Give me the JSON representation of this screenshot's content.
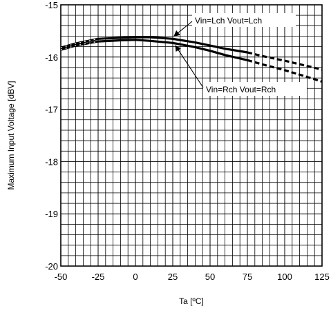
{
  "chart_data": {
    "type": "line",
    "xlabel": "Ta [ºC]",
    "ylabel": "Maximum Input Voltage [dBV]",
    "xlim": [
      -50,
      125
    ],
    "ylim": [
      -20,
      -15
    ],
    "xticks": [
      -50,
      -25,
      0,
      25,
      50,
      75,
      100,
      125
    ],
    "yticks": [
      -20,
      -19,
      -18,
      -17,
      -16,
      -15
    ],
    "grid": true,
    "series": [
      {
        "name": "Vin=Lch Vout=Lch",
        "solid_x": [
          -50,
          -40,
          -25,
          -10,
          0,
          10,
          25,
          40,
          50,
          60,
          75
        ],
        "solid_y": [
          -15.82,
          -15.74,
          -15.65,
          -15.63,
          -15.62,
          -15.62,
          -15.65,
          -15.72,
          -15.78,
          -15.84,
          -15.91
        ],
        "dashed_x": [
          75,
          85,
          100,
          115,
          125
        ],
        "dashed_y": [
          -15.91,
          -15.98,
          -16.07,
          -16.17,
          -16.24
        ]
      },
      {
        "name": "Vin=Rch Vout=Rch",
        "solid_x": [
          -50,
          -40,
          -25,
          -10,
          0,
          10,
          25,
          40,
          50,
          60,
          75
        ],
        "solid_y": [
          -15.86,
          -15.78,
          -15.7,
          -15.68,
          -15.67,
          -15.69,
          -15.73,
          -15.81,
          -15.88,
          -15.96,
          -16.06
        ],
        "dashed_x": [
          75,
          85,
          100,
          115,
          125
        ],
        "dashed_y": [
          -16.06,
          -16.14,
          -16.25,
          -16.38,
          -16.47
        ]
      }
    ],
    "annotations": [
      {
        "text": "Vin=Lch Vout=Lch",
        "series": 0,
        "point_x": 25
      },
      {
        "text": "Vin=Rch Vout=Rch",
        "series": 1,
        "point_x": 25
      }
    ]
  }
}
